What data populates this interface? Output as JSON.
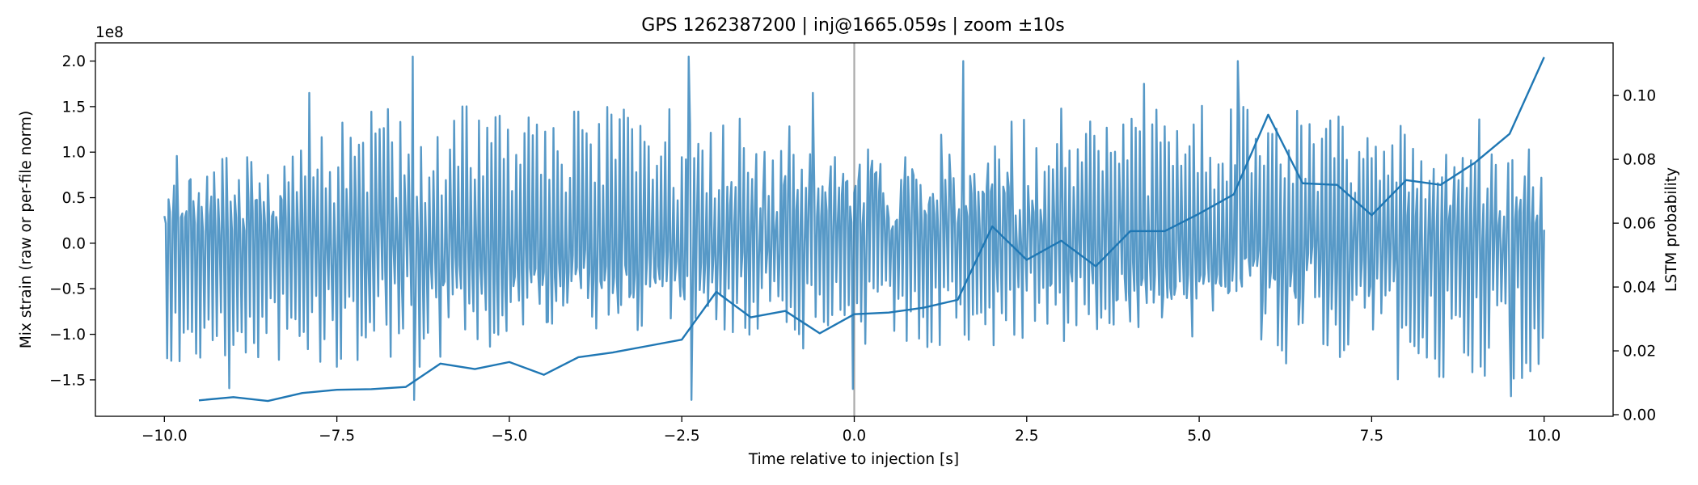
{
  "chart_data": {
    "type": "line",
    "title": "GPS 1262387200 | inj@1665.059s | zoom ±10s",
    "xlabel": "Time relative to injection [s]",
    "ylabel_left": "Mix strain (raw or per-file norm)",
    "ylabel_right": "LSTM probability",
    "left_offset_label": "1e8",
    "xlim": [
      -11.0,
      11.0
    ],
    "ylim_left": [
      -1.9,
      2.2
    ],
    "ylim_right": [
      -0.0005,
      0.1165
    ],
    "x_ticks": [
      -10.0,
      -7.5,
      -5.0,
      -2.5,
      0.0,
      2.5,
      5.0,
      7.5,
      10.0
    ],
    "x_tick_labels": [
      "−10.0",
      "−7.5",
      "−5.0",
      "−2.5",
      "0.0",
      "2.5",
      "5.0",
      "7.5",
      "10.0"
    ],
    "y_left_ticks": [
      -1.5,
      -1.0,
      -0.5,
      0.0,
      0.5,
      1.0,
      1.5,
      2.0
    ],
    "y_left_tick_labels": [
      "−1.5",
      "−1.0",
      "−0.5",
      "0.0",
      "0.5",
      "1.0",
      "1.5",
      "2.0"
    ],
    "y_right_ticks": [
      0.0,
      0.02,
      0.04,
      0.06,
      0.08,
      0.1
    ],
    "y_right_tick_labels": [
      "0.00",
      "0.02",
      "0.04",
      "0.06",
      "0.08",
      "0.10"
    ],
    "injection_marker_x": 0.0,
    "series": [
      {
        "name": "strain",
        "axis": "left",
        "color": "#1f77b4",
        "opacity": 0.75,
        "note": "dense oscillating strain trace (approx. 30 Hz, amplitude ~±1.7e8, spikes to ~2.0e8), sampled at 0.02 s",
        "x_range": [
          -10.0,
          10.0
        ],
        "dt": 0.02,
        "spikes": [
          {
            "x": -6.4,
            "y": 2.05
          },
          {
            "x": -2.4,
            "y": 2.05
          },
          {
            "x": 1.58,
            "y": 2.0
          },
          {
            "x": 5.56,
            "y": 2.0
          },
          {
            "x": 9.52,
            "y": 1.98
          },
          {
            "x": -7.9,
            "y": 1.65
          },
          {
            "x": -0.6,
            "y": 1.65
          },
          {
            "x": 4.2,
            "y": 1.75
          },
          {
            "x": -6.38,
            "y": -1.72
          },
          {
            "x": -2.36,
            "y": -1.72
          },
          {
            "x": -0.02,
            "y": -1.6
          },
          {
            "x": 9.52,
            "y": -1.68
          }
        ]
      },
      {
        "name": "LSTM probability",
        "axis": "right",
        "color": "#1f77b4",
        "x": [
          -9.5,
          -9.0,
          -8.5,
          -8.0,
          -7.5,
          -7.0,
          -6.5,
          -6.0,
          -5.5,
          -5.0,
          -4.5,
          -4.0,
          -3.5,
          -3.0,
          -2.5,
          -2.0,
          -1.5,
          -1.0,
          -0.5,
          0.0,
          0.5,
          1.0,
          1.5,
          2.0,
          2.5,
          3.0,
          3.5,
          4.0,
          4.5,
          5.0,
          5.5,
          6.0,
          6.5,
          7.0,
          7.5,
          8.0,
          8.5,
          9.0,
          9.5,
          10.0
        ],
        "y": [
          0.0045,
          0.0055,
          0.0043,
          0.0068,
          0.0078,
          0.008,
          0.0087,
          0.016,
          0.0143,
          0.0165,
          0.0125,
          0.018,
          0.0195,
          0.0215,
          0.0235,
          0.0385,
          0.0305,
          0.0325,
          0.0255,
          0.0315,
          0.032,
          0.0335,
          0.036,
          0.059,
          0.0485,
          0.0545,
          0.0465,
          0.0575,
          0.0575,
          0.063,
          0.069,
          0.094,
          0.0725,
          0.072,
          0.0625,
          0.0735,
          0.072,
          0.079,
          0.088,
          0.112
        ]
      }
    ]
  }
}
